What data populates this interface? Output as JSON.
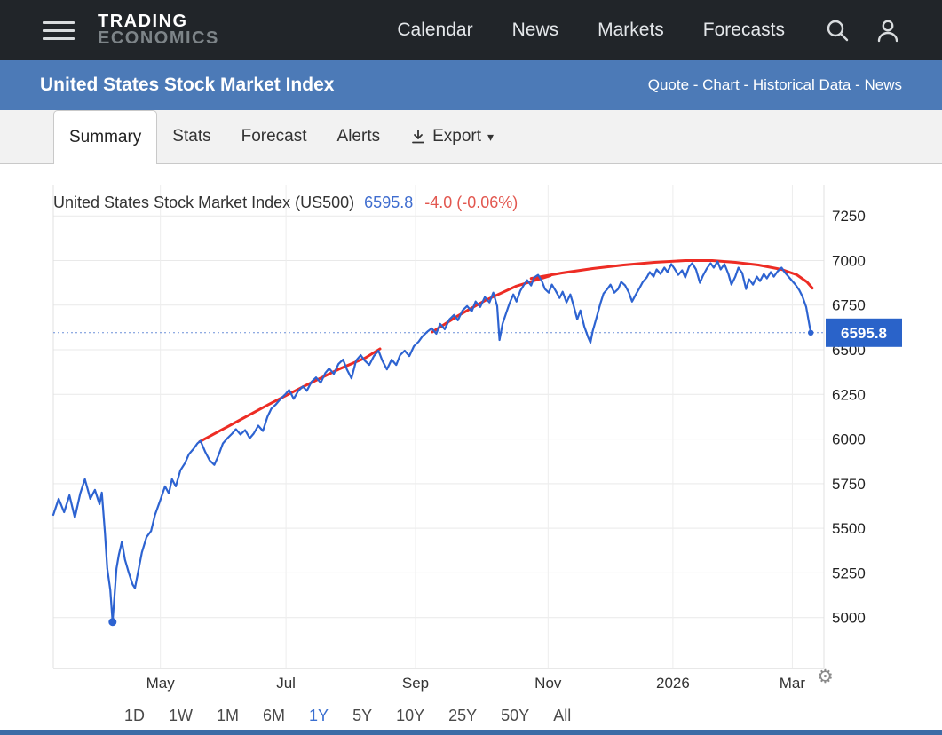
{
  "topnav": {
    "logo_line1": "TRADING",
    "logo_line2": "ECONOMICS",
    "items": [
      "Calendar",
      "News",
      "Markets",
      "Forecasts"
    ]
  },
  "subheader": {
    "title": "United States Stock Market Index",
    "links": [
      "Quote",
      "Chart",
      "Historical Data",
      "News"
    ],
    "separator": " - "
  },
  "tabs": {
    "items": [
      "Summary",
      "Stats",
      "Forecast",
      "Alerts"
    ],
    "active": "Summary",
    "export_label": "Export",
    "export_caret": "▾"
  },
  "chart_header": {
    "title": "United States Stock Market Index (US500)",
    "value": "6595.8",
    "change": "-4.0 (-0.06%)"
  },
  "ranges": {
    "items": [
      "1D",
      "1W",
      "1M",
      "6M",
      "1Y",
      "5Y",
      "10Y",
      "25Y",
      "50Y",
      "All"
    ],
    "active": "1Y"
  },
  "gear_glyph": "⚙",
  "chart_data": {
    "type": "line",
    "title": "United States Stock Market Index (US500)",
    "last_value": 6595.8,
    "change_abs": -4.0,
    "change_pct": -0.06,
    "badge_label": "6595.8",
    "ylim": [
      4715,
      7425
    ],
    "yticks": [
      5000,
      5250,
      5500,
      5750,
      6000,
      6250,
      6500,
      6750,
      7000,
      7250
    ],
    "xticks": [
      {
        "pos": 0.139,
        "label": "May"
      },
      {
        "pos": 0.302,
        "label": "Jul"
      },
      {
        "pos": 0.47,
        "label": "Sep"
      },
      {
        "pos": 0.642,
        "label": "Nov"
      },
      {
        "pos": 0.804,
        "label": "2026"
      },
      {
        "pos": 0.959,
        "label": "Mar"
      }
    ],
    "colors": {
      "line": "#2d63d1",
      "trend": "#ed2c24",
      "badge": "#2a63c9",
      "dotted": "#6b8fd8",
      "grid": "#e9e9e9",
      "axis": "#d0d0d0",
      "tick_text": "#222"
    },
    "current_line": 6595.8,
    "low_marker": [
      0.077,
      4975
    ],
    "points": [
      [
        0.0,
        5575
      ],
      [
        0.007,
        5665
      ],
      [
        0.014,
        5590
      ],
      [
        0.021,
        5685
      ],
      [
        0.028,
        5560
      ],
      [
        0.035,
        5695
      ],
      [
        0.041,
        5775
      ],
      [
        0.048,
        5665
      ],
      [
        0.054,
        5715
      ],
      [
        0.06,
        5635
      ],
      [
        0.063,
        5700
      ],
      [
        0.067,
        5475
      ],
      [
        0.07,
        5275
      ],
      [
        0.074,
        5155
      ],
      [
        0.077,
        4975
      ],
      [
        0.082,
        5275
      ],
      [
        0.085,
        5350
      ],
      [
        0.089,
        5425
      ],
      [
        0.093,
        5325
      ],
      [
        0.098,
        5250
      ],
      [
        0.103,
        5185
      ],
      [
        0.106,
        5165
      ],
      [
        0.111,
        5275
      ],
      [
        0.115,
        5365
      ],
      [
        0.121,
        5450
      ],
      [
        0.127,
        5485
      ],
      [
        0.132,
        5575
      ],
      [
        0.139,
        5660
      ],
      [
        0.145,
        5735
      ],
      [
        0.15,
        5695
      ],
      [
        0.154,
        5775
      ],
      [
        0.159,
        5735
      ],
      [
        0.165,
        5825
      ],
      [
        0.171,
        5865
      ],
      [
        0.176,
        5915
      ],
      [
        0.182,
        5945
      ],
      [
        0.187,
        5975
      ],
      [
        0.191,
        5990
      ],
      [
        0.197,
        5930
      ],
      [
        0.203,
        5880
      ],
      [
        0.209,
        5855
      ],
      [
        0.214,
        5905
      ],
      [
        0.22,
        5975
      ],
      [
        0.226,
        6005
      ],
      [
        0.232,
        6030
      ],
      [
        0.237,
        6055
      ],
      [
        0.243,
        6025
      ],
      [
        0.249,
        6050
      ],
      [
        0.255,
        6005
      ],
      [
        0.26,
        6030
      ],
      [
        0.266,
        6075
      ],
      [
        0.272,
        6045
      ],
      [
        0.278,
        6125
      ],
      [
        0.283,
        6170
      ],
      [
        0.289,
        6195
      ],
      [
        0.295,
        6225
      ],
      [
        0.301,
        6250
      ],
      [
        0.306,
        6275
      ],
      [
        0.312,
        6225
      ],
      [
        0.318,
        6270
      ],
      [
        0.324,
        6295
      ],
      [
        0.329,
        6270
      ],
      [
        0.335,
        6320
      ],
      [
        0.341,
        6345
      ],
      [
        0.347,
        6315
      ],
      [
        0.353,
        6370
      ],
      [
        0.358,
        6395
      ],
      [
        0.364,
        6365
      ],
      [
        0.37,
        6420
      ],
      [
        0.376,
        6445
      ],
      [
        0.381,
        6390
      ],
      [
        0.387,
        6340
      ],
      [
        0.393,
        6440
      ],
      [
        0.399,
        6470
      ],
      [
        0.404,
        6440
      ],
      [
        0.41,
        6415
      ],
      [
        0.416,
        6465
      ],
      [
        0.422,
        6495
      ],
      [
        0.427,
        6440
      ],
      [
        0.433,
        6390
      ],
      [
        0.439,
        6445
      ],
      [
        0.445,
        6415
      ],
      [
        0.45,
        6470
      ],
      [
        0.456,
        6495
      ],
      [
        0.462,
        6465
      ],
      [
        0.468,
        6520
      ],
      [
        0.474,
        6545
      ],
      [
        0.479,
        6575
      ],
      [
        0.485,
        6600
      ],
      [
        0.491,
        6620
      ],
      [
        0.497,
        6590
      ],
      [
        0.502,
        6645
      ],
      [
        0.508,
        6615
      ],
      [
        0.514,
        6670
      ],
      [
        0.52,
        6695
      ],
      [
        0.525,
        6665
      ],
      [
        0.531,
        6720
      ],
      [
        0.537,
        6745
      ],
      [
        0.543,
        6715
      ],
      [
        0.548,
        6770
      ],
      [
        0.554,
        6740
      ],
      [
        0.56,
        6795
      ],
      [
        0.566,
        6765
      ],
      [
        0.571,
        6820
      ],
      [
        0.576,
        6745
      ],
      [
        0.579,
        6555
      ],
      [
        0.583,
        6645
      ],
      [
        0.588,
        6710
      ],
      [
        0.592,
        6760
      ],
      [
        0.597,
        6810
      ],
      [
        0.601,
        6770
      ],
      [
        0.606,
        6830
      ],
      [
        0.611,
        6865
      ],
      [
        0.615,
        6890
      ],
      [
        0.62,
        6860
      ],
      [
        0.624,
        6905
      ],
      [
        0.629,
        6920
      ],
      [
        0.634,
        6885
      ],
      [
        0.638,
        6840
      ],
      [
        0.643,
        6820
      ],
      [
        0.647,
        6865
      ],
      [
        0.652,
        6830
      ],
      [
        0.657,
        6790
      ],
      [
        0.661,
        6825
      ],
      [
        0.666,
        6765
      ],
      [
        0.671,
        6810
      ],
      [
        0.675,
        6750
      ],
      [
        0.68,
        6670
      ],
      [
        0.684,
        6720
      ],
      [
        0.689,
        6630
      ],
      [
        0.694,
        6570
      ],
      [
        0.697,
        6540
      ],
      [
        0.7,
        6605
      ],
      [
        0.705,
        6680
      ],
      [
        0.71,
        6760
      ],
      [
        0.714,
        6815
      ],
      [
        0.719,
        6840
      ],
      [
        0.723,
        6865
      ],
      [
        0.728,
        6820
      ],
      [
        0.733,
        6840
      ],
      [
        0.737,
        6880
      ],
      [
        0.742,
        6860
      ],
      [
        0.747,
        6820
      ],
      [
        0.751,
        6770
      ],
      [
        0.756,
        6810
      ],
      [
        0.76,
        6840
      ],
      [
        0.765,
        6880
      ],
      [
        0.77,
        6905
      ],
      [
        0.774,
        6935
      ],
      [
        0.779,
        6910
      ],
      [
        0.783,
        6950
      ],
      [
        0.788,
        6925
      ],
      [
        0.793,
        6960
      ],
      [
        0.797,
        6935
      ],
      [
        0.802,
        6980
      ],
      [
        0.806,
        6955
      ],
      [
        0.811,
        6920
      ],
      [
        0.816,
        6945
      ],
      [
        0.82,
        6905
      ],
      [
        0.825,
        6965
      ],
      [
        0.829,
        6985
      ],
      [
        0.834,
        6950
      ],
      [
        0.839,
        6875
      ],
      [
        0.843,
        6915
      ],
      [
        0.848,
        6955
      ],
      [
        0.853,
        6985
      ],
      [
        0.857,
        6960
      ],
      [
        0.862,
        6995
      ],
      [
        0.866,
        6950
      ],
      [
        0.871,
        6980
      ],
      [
        0.876,
        6925
      ],
      [
        0.88,
        6865
      ],
      [
        0.885,
        6910
      ],
      [
        0.889,
        6960
      ],
      [
        0.894,
        6930
      ],
      [
        0.899,
        6840
      ],
      [
        0.903,
        6895
      ],
      [
        0.908,
        6865
      ],
      [
        0.913,
        6910
      ],
      [
        0.917,
        6885
      ],
      [
        0.922,
        6925
      ],
      [
        0.926,
        6900
      ],
      [
        0.931,
        6935
      ],
      [
        0.935,
        6910
      ],
      [
        0.94,
        6940
      ],
      [
        0.945,
        6960
      ],
      [
        0.949,
        6935
      ],
      [
        0.954,
        6910
      ],
      [
        0.959,
        6885
      ],
      [
        0.963,
        6865
      ],
      [
        0.968,
        6835
      ],
      [
        0.972,
        6800
      ],
      [
        0.977,
        6740
      ],
      [
        0.983,
        6595.8
      ]
    ],
    "trendlines": [
      [
        [
          0.19,
          5985
        ],
        [
          0.235,
          6090
        ],
        [
          0.28,
          6195
        ],
        [
          0.325,
          6295
        ],
        [
          0.37,
          6390
        ],
        [
          0.405,
          6455
        ],
        [
          0.424,
          6505
        ]
      ],
      [
        [
          0.492,
          6600
        ],
        [
          0.525,
          6690
        ],
        [
          0.56,
          6775
        ],
        [
          0.6,
          6855
        ],
        [
          0.645,
          6915
        ]
      ],
      [
        [
          0.62,
          6900
        ],
        [
          0.66,
          6930
        ],
        [
          0.7,
          6955
        ],
        [
          0.74,
          6975
        ],
        [
          0.78,
          6990
        ],
        [
          0.82,
          7000
        ],
        [
          0.855,
          7000
        ],
        [
          0.885,
          6990
        ],
        [
          0.915,
          6975
        ],
        [
          0.945,
          6950
        ],
        [
          0.965,
          6920
        ],
        [
          0.978,
          6880
        ],
        [
          0.985,
          6845
        ]
      ]
    ]
  }
}
